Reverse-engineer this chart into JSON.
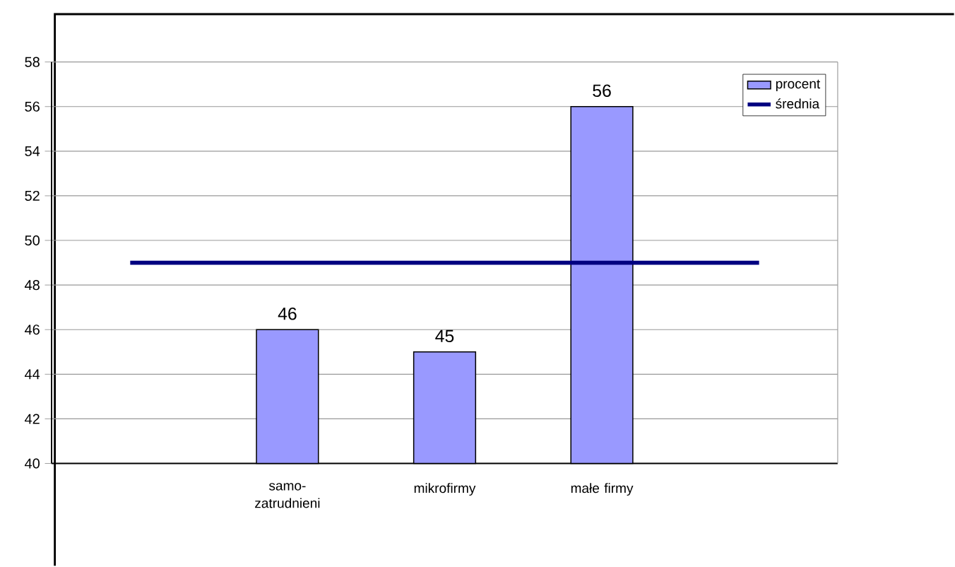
{
  "chart_data": {
    "type": "bar",
    "categories": [
      null,
      "samo-zatrudnieni",
      "mikrofirmy",
      "małe firmy",
      null
    ],
    "series": [
      {
        "name": "procent",
        "color": "#9999ff",
        "values": [
          null,
          46,
          45,
          56,
          null
        ],
        "value_labels": [
          null,
          "46",
          "45",
          "56",
          null
        ]
      },
      {
        "name": "średnia",
        "type": "line",
        "color": "#000080",
        "values": [
          49,
          49,
          49,
          49,
          49
        ]
      }
    ],
    "ylim": [
      40,
      58
    ],
    "yticks": [
      40,
      42,
      44,
      46,
      48,
      50,
      52,
      54,
      56,
      58
    ],
    "grid": "y",
    "legend": "top right",
    "marker": "none",
    "line_style": "solid"
  }
}
